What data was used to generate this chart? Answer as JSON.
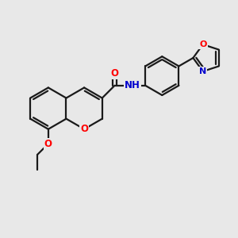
{
  "bg_color": "#e8e8e8",
  "bond_color": "#1a1a1a",
  "bond_width": 1.6,
  "atom_colors": {
    "O": "#ff0000",
    "N": "#0000cd",
    "C": "#1a1a1a"
  },
  "font_size": 8.5,
  "figsize": [
    3.0,
    3.0
  ],
  "dpi": 100
}
